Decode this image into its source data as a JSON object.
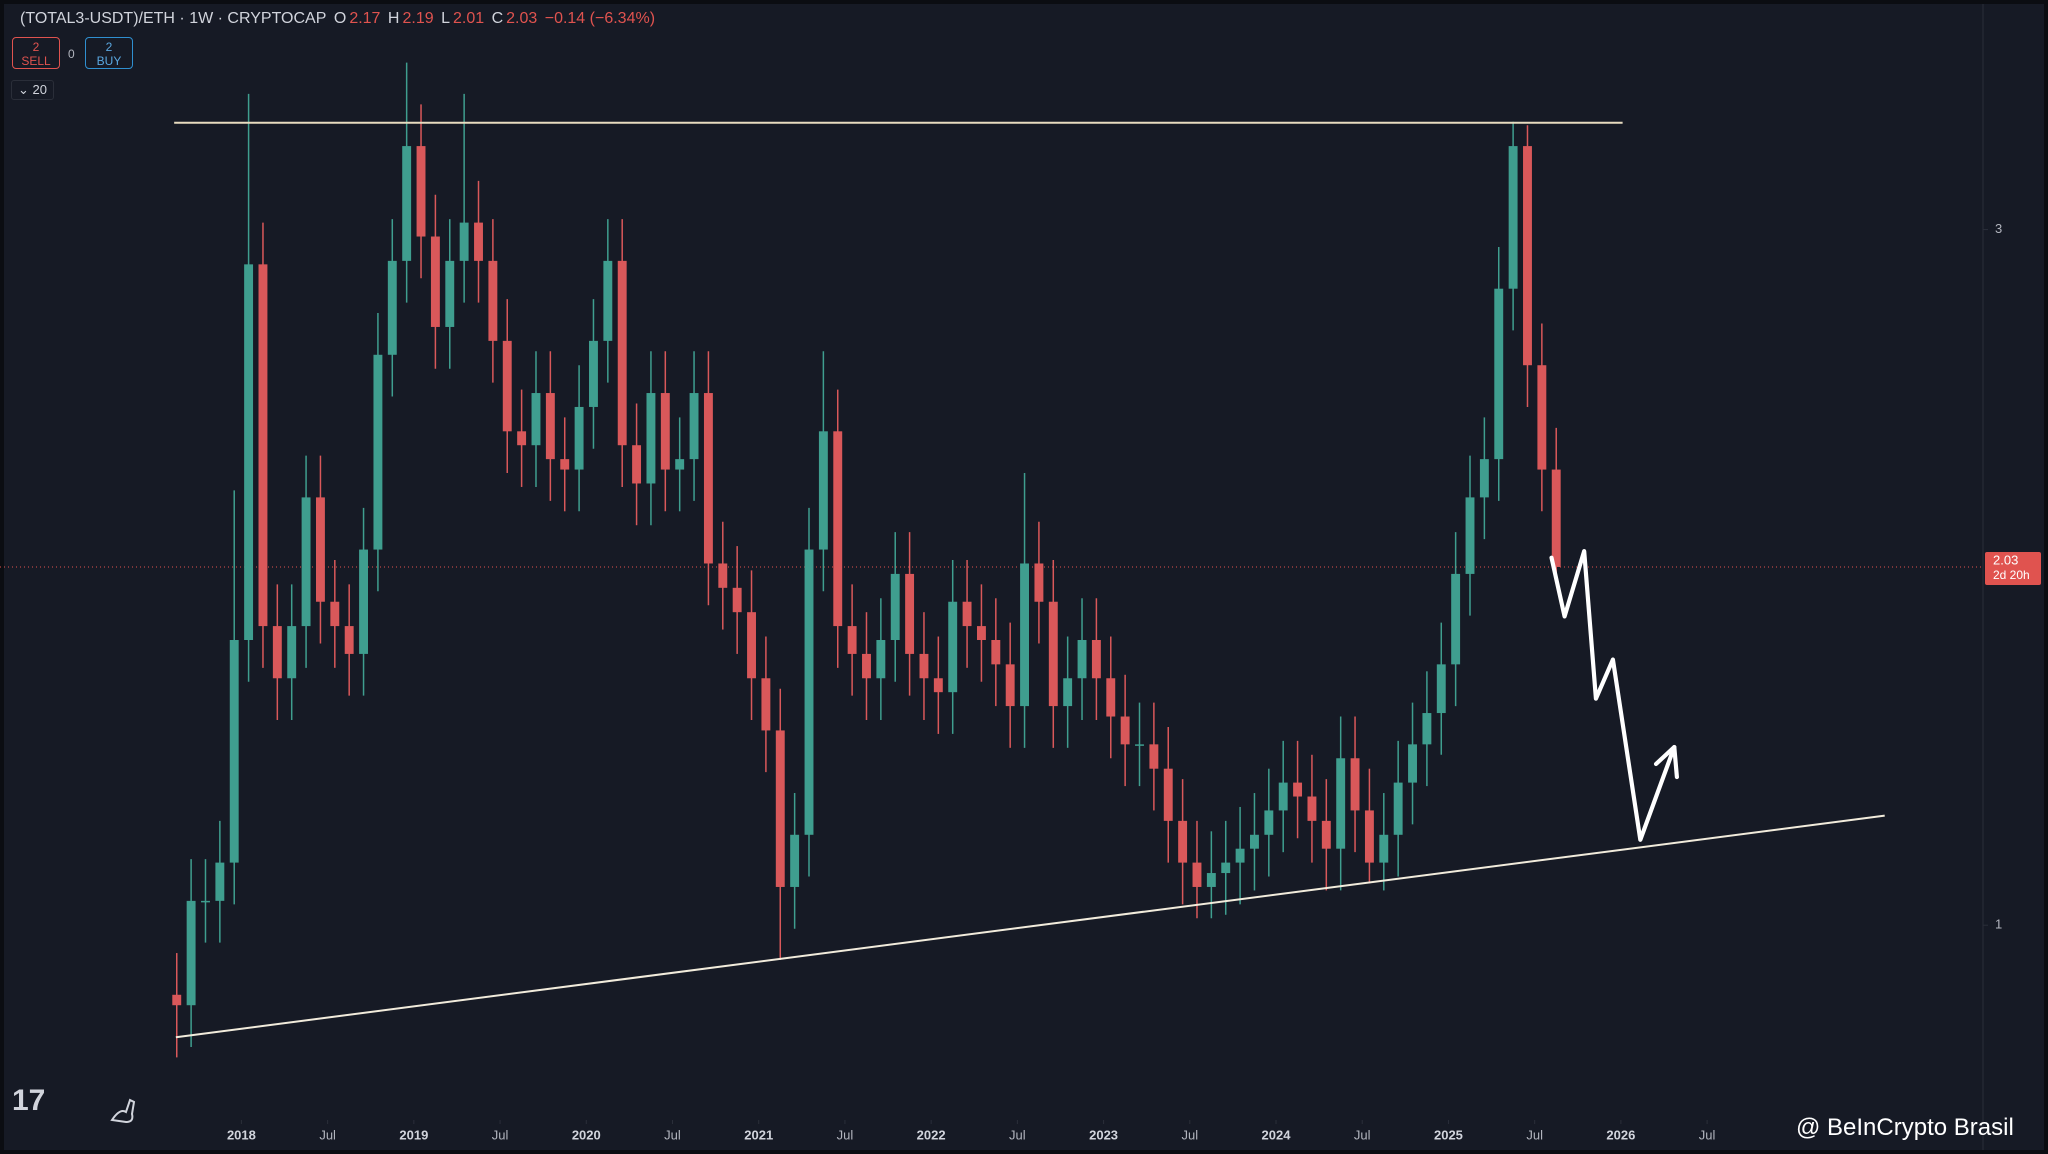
{
  "header": {
    "title": "(TOTAL3-USDT)/ETH · 1W · CRYPTOCAP",
    "o_label": "O",
    "o": 2.17,
    "h_label": "H",
    "h": 2.19,
    "l_label": "L",
    "l": 2.01,
    "c_label": "C",
    "c": 2.03,
    "change": "−0.14 (−6.34%)"
  },
  "toolbar": {
    "sell_count": 2,
    "sell_label": "SELL",
    "spread": 0,
    "buy_count": 2,
    "buy_label": "BUY",
    "indicator_count": 20
  },
  "watermark": "@ BeInCrypto Brasil",
  "chart_data": {
    "type": "candlestick",
    "up_color": "#3f9e8f",
    "down_color": "#d9585a",
    "grid": false,
    "x": [
      "2017-08",
      "2017-09",
      "2017-10",
      "2017-11",
      "2017-12",
      "2018-01",
      "2018-02",
      "2018-03",
      "2018-04",
      "2018-05",
      "2018-06",
      "2018-07",
      "2018-08",
      "2018-09",
      "2018-10",
      "2018-11",
      "2018-12",
      "2019-01",
      "2019-02",
      "2019-03",
      "2019-04",
      "2019-05",
      "2019-06",
      "2019-07",
      "2019-08",
      "2019-09",
      "2019-10",
      "2019-11",
      "2019-12",
      "2020-01",
      "2020-02",
      "2020-03",
      "2020-04",
      "2020-05",
      "2020-06",
      "2020-07",
      "2020-08",
      "2020-09",
      "2020-10",
      "2020-11",
      "2020-12",
      "2021-01",
      "2021-02",
      "2021-03",
      "2021-04",
      "2021-05",
      "2021-06",
      "2021-07",
      "2021-08",
      "2021-09",
      "2021-10",
      "2021-11",
      "2021-12",
      "2022-01",
      "2022-02",
      "2022-03",
      "2022-04",
      "2022-05",
      "2022-06",
      "2022-07",
      "2022-08",
      "2022-09",
      "2022-10",
      "2022-11",
      "2022-12",
      "2023-01",
      "2023-02",
      "2023-03",
      "2023-04",
      "2023-05",
      "2023-06",
      "2023-07",
      "2023-08",
      "2023-09",
      "2023-10",
      "2023-11",
      "2023-12",
      "2024-01",
      "2024-02",
      "2024-03",
      "2024-04",
      "2024-05",
      "2024-06",
      "2024-07",
      "2024-08",
      "2024-09",
      "2024-10",
      "2024-11",
      "2024-12",
      "2025-01",
      "2025-02",
      "2025-03",
      "2025-04",
      "2025-05",
      "2025-06",
      "2025-07",
      "2025-08"
    ],
    "open": [
      0.8,
      0.77,
      1.07,
      1.07,
      1.18,
      1.82,
      2.9,
      1.86,
      1.71,
      1.86,
      2.23,
      1.93,
      1.86,
      1.78,
      2.08,
      2.64,
      2.91,
      3.24,
      2.98,
      2.72,
      2.91,
      3.02,
      2.91,
      2.68,
      2.42,
      2.38,
      2.53,
      2.34,
      2.31,
      2.49,
      2.68,
      2.91,
      2.38,
      2.27,
      2.53,
      2.31,
      2.34,
      2.53,
      2.04,
      1.97,
      1.9,
      1.71,
      1.56,
      1.11,
      1.26,
      2.08,
      2.42,
      1.86,
      1.78,
      1.71,
      1.82,
      2.01,
      1.78,
      1.71,
      1.67,
      1.93,
      1.86,
      1.82,
      1.75,
      1.63,
      2.04,
      1.93,
      1.63,
      1.71,
      1.82,
      1.71,
      1.6,
      1.52,
      1.52,
      1.45,
      1.3,
      1.18,
      1.11,
      1.15,
      1.18,
      1.22,
      1.26,
      1.33,
      1.41,
      1.37,
      1.3,
      1.22,
      1.48,
      1.33,
      1.18,
      1.26,
      1.41,
      1.52,
      1.61,
      1.75,
      2.01,
      2.23,
      2.34,
      2.83,
      3.24,
      2.61,
      2.31
    ],
    "high": [
      0.92,
      1.19,
      1.19,
      1.3,
      2.25,
      3.39,
      3.02,
      1.98,
      1.98,
      2.35,
      2.35,
      2.05,
      1.98,
      2.2,
      2.76,
      3.03,
      3.48,
      3.36,
      3.1,
      3.03,
      3.39,
      3.14,
      3.03,
      2.8,
      2.54,
      2.65,
      2.65,
      2.46,
      2.61,
      2.8,
      3.03,
      3.03,
      2.5,
      2.65,
      2.65,
      2.46,
      2.65,
      2.65,
      2.16,
      2.09,
      2.02,
      1.83,
      1.68,
      1.38,
      2.2,
      2.65,
      2.54,
      1.98,
      1.9,
      1.94,
      2.13,
      2.13,
      1.9,
      1.83,
      2.05,
      2.05,
      1.98,
      1.94,
      1.87,
      2.3,
      2.16,
      2.05,
      1.83,
      1.94,
      1.94,
      1.83,
      1.72,
      1.64,
      1.64,
      1.57,
      1.42,
      1.3,
      1.27,
      1.3,
      1.34,
      1.38,
      1.45,
      1.53,
      1.53,
      1.49,
      1.42,
      1.6,
      1.6,
      1.45,
      1.38,
      1.53,
      1.64,
      1.73,
      1.87,
      2.13,
      2.35,
      2.46,
      2.95,
      3.31,
      3.3,
      2.73,
      2.43
    ],
    "low": [
      0.62,
      0.65,
      0.95,
      0.95,
      1.06,
      1.7,
      1.74,
      1.59,
      1.59,
      1.74,
      1.81,
      1.74,
      1.66,
      1.66,
      1.96,
      2.52,
      2.79,
      2.86,
      2.6,
      2.6,
      2.79,
      2.79,
      2.56,
      2.3,
      2.26,
      2.26,
      2.22,
      2.19,
      2.19,
      2.37,
      2.56,
      2.26,
      2.15,
      2.15,
      2.19,
      2.19,
      2.22,
      1.92,
      1.85,
      1.78,
      1.59,
      1.44,
      0.9,
      0.99,
      1.14,
      1.96,
      1.74,
      1.66,
      1.59,
      1.59,
      1.7,
      1.66,
      1.59,
      1.55,
      1.55,
      1.74,
      1.7,
      1.63,
      1.51,
      1.51,
      1.81,
      1.51,
      1.51,
      1.59,
      1.59,
      1.48,
      1.4,
      1.4,
      1.33,
      1.18,
      1.06,
      1.02,
      1.02,
      1.03,
      1.06,
      1.1,
      1.14,
      1.21,
      1.25,
      1.18,
      1.1,
      1.1,
      1.21,
      1.12,
      1.1,
      1.14,
      1.29,
      1.4,
      1.49,
      1.63,
      1.89,
      2.11,
      2.22,
      2.71,
      2.49,
      2.19,
      2.01
    ],
    "close": [
      0.77,
      1.07,
      1.07,
      1.18,
      1.82,
      2.9,
      1.86,
      1.71,
      1.86,
      2.23,
      1.93,
      1.86,
      1.78,
      2.08,
      2.64,
      2.91,
      3.24,
      2.98,
      2.72,
      2.91,
      3.02,
      2.91,
      2.68,
      2.42,
      2.38,
      2.53,
      2.34,
      2.31,
      2.49,
      2.68,
      2.91,
      2.38,
      2.27,
      2.53,
      2.31,
      2.34,
      2.53,
      2.04,
      1.97,
      1.9,
      1.71,
      1.56,
      1.11,
      1.26,
      2.08,
      2.42,
      1.86,
      1.78,
      1.71,
      1.82,
      2.01,
      1.78,
      1.71,
      1.67,
      1.93,
      1.86,
      1.82,
      1.75,
      1.63,
      2.04,
      1.93,
      1.63,
      1.71,
      1.82,
      1.71,
      1.6,
      1.52,
      1.52,
      1.45,
      1.3,
      1.18,
      1.11,
      1.15,
      1.18,
      1.22,
      1.26,
      1.33,
      1.41,
      1.37,
      1.3,
      1.22,
      1.48,
      1.33,
      1.18,
      1.26,
      1.41,
      1.52,
      1.61,
      1.75,
      2.01,
      2.23,
      2.34,
      2.83,
      3.24,
      2.61,
      2.31,
      2.03
    ],
    "xlim": [
      2016.6,
      2028.1
    ],
    "xticks": [
      2018,
      {
        "value": 2018.5,
        "label": "Jul"
      },
      2019,
      {
        "value": 2019.5,
        "label": "Jul"
      },
      2020,
      {
        "value": 2020.5,
        "label": "Jul"
      },
      2021,
      {
        "value": 2021.5,
        "label": "Jul"
      },
      2022,
      {
        "value": 2022.5,
        "label": "Jul"
      },
      2023,
      {
        "value": 2023.5,
        "label": "Jul"
      },
      2024,
      {
        "value": 2024.5,
        "label": "Jul"
      },
      2025,
      {
        "value": 2025.5,
        "label": "Jul"
      },
      2026,
      {
        "value": 2026.5,
        "label": "Jul"
      }
    ],
    "ylim": [
      0.44,
      3.66
    ],
    "yticks": [
      1,
      3
    ],
    "lines": [
      {
        "x": [
          2017.61,
          2026.01
        ],
        "y": [
          3.307,
          3.307
        ],
        "color": "#e8dcc0"
      },
      {
        "x": [
          2017.62,
          2027.53
        ],
        "y": [
          0.678,
          1.315
        ],
        "color": "#f2ecdc"
      }
    ],
    "price_line": {
      "value": 2.03,
      "countdown": "2d 20h",
      "color": "#e0534f"
    }
  }
}
